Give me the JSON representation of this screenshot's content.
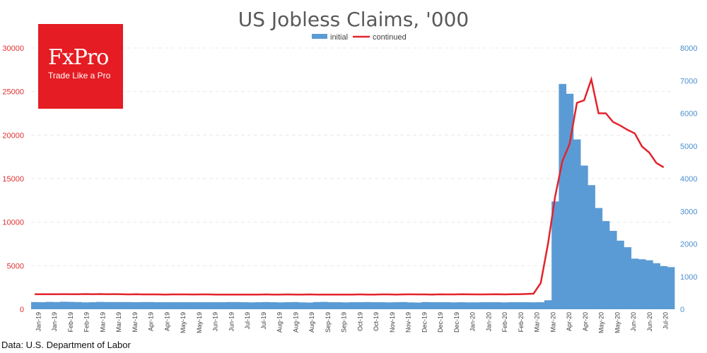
{
  "chart_data": {
    "type": "bar+line",
    "title": "US Jobless Claims, '000",
    "source": "Data: U.S. Department of Labor",
    "legend": {
      "position": "top-center",
      "items": [
        "initial",
        "continued"
      ]
    },
    "y_left": {
      "ticks": [
        "0",
        "5000",
        "10000",
        "15000",
        "20000",
        "25000",
        "30000"
      ],
      "range": [
        0,
        30000
      ]
    },
    "y_right": {
      "ticks": [
        "0",
        "1000",
        "2000",
        "3000",
        "4000",
        "5000",
        "6000",
        "7000",
        "8000"
      ],
      "range": [
        0,
        8000
      ]
    },
    "grid": true,
    "x_labels": [
      "Jan-19",
      "Jan-19",
      "Feb-19",
      "Feb-19",
      "Mar-19",
      "Mar-19",
      "Mar-19",
      "Apr-19",
      "Apr-19",
      "May-19",
      "May-19",
      "Jun-19",
      "Jun-19",
      "Jul-19",
      "Jul-19",
      "Aug-19",
      "Aug-19",
      "Aug-19",
      "Sep-19",
      "Sep-19",
      "Oct-19",
      "Oct-19",
      "Nov-19",
      "Nov-19",
      "Dec-19",
      "Dec-19",
      "Dec-19",
      "Jan-20",
      "Jan-20",
      "Feb-20",
      "Feb-20",
      "Mar-20",
      "Mar-20",
      "Apr-20",
      "Apr-20",
      "May-20",
      "May-20",
      "Jun-20",
      "Jun-20",
      "Jul-20"
    ],
    "series": [
      {
        "name": "initial",
        "axis": "right",
        "color": "#5b9bd5",
        "values": [
          220,
          215,
          225,
          220,
          230,
          225,
          220,
          210,
          215,
          225,
          220,
          220,
          220,
          220,
          215,
          220,
          220,
          215,
          215,
          215,
          215,
          215,
          215,
          215,
          215,
          215,
          215,
          220,
          220,
          215,
          210,
          215,
          220,
          215,
          210,
          215,
          220,
          210,
          205,
          220,
          225,
          215,
          215,
          210,
          215,
          215,
          220,
          215,
          215,
          210,
          215,
          220,
          210,
          205,
          220,
          215,
          215,
          215,
          210,
          215,
          210,
          210,
          215,
          215,
          215,
          210,
          215,
          215,
          215,
          212,
          215,
          275,
          3300,
          6900,
          6600,
          5200,
          4400,
          3800,
          3100,
          2700,
          2400,
          2100,
          1900,
          1550,
          1530,
          1500,
          1410,
          1320,
          1290
        ]
      },
      {
        "name": "continued",
        "axis": "left",
        "color": "#e3232c",
        "values": [
          1730,
          1730,
          1725,
          1725,
          1735,
          1730,
          1730,
          1740,
          1730,
          1740,
          1730,
          1735,
          1730,
          1705,
          1720,
          1705,
          1700,
          1700,
          1690,
          1700,
          1700,
          1700,
          1695,
          1700,
          1700,
          1690,
          1690,
          1690,
          1690,
          1690,
          1690,
          1690,
          1700,
          1680,
          1680,
          1700,
          1690,
          1690,
          1700,
          1690,
          1680,
          1680,
          1680,
          1690,
          1690,
          1700,
          1690,
          1690,
          1700,
          1700,
          1690,
          1700,
          1710,
          1700,
          1700,
          1690,
          1710,
          1700,
          1700,
          1720,
          1710,
          1700,
          1700,
          1710,
          1720,
          1700,
          1730,
          1730,
          1750,
          1780,
          3000,
          7500,
          13000,
          17000,
          19000,
          23700,
          24000,
          26400,
          22500,
          22500,
          21500,
          21100,
          20600,
          20200,
          18700,
          18000,
          16800,
          16300
        ]
      }
    ]
  }
}
